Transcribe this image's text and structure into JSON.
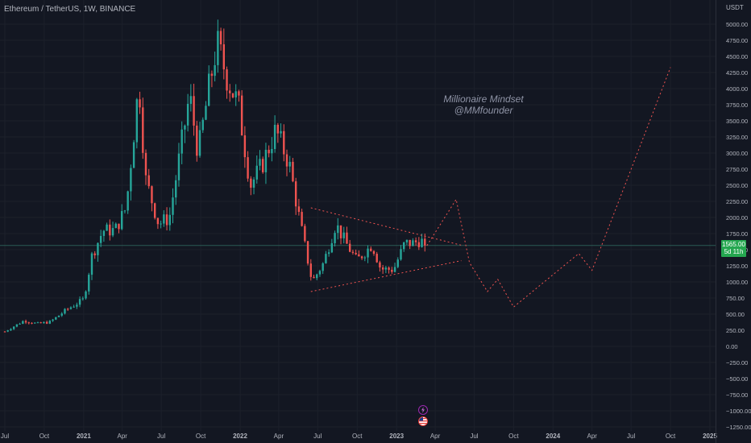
{
  "header": {
    "symbol": "Ethereum / TetherUS",
    "interval": "1W",
    "exchange": "BINANCE",
    "title_text": "Ethereum / TetherUS, 1W, BINANCE"
  },
  "watermark": {
    "line1": "Millionaire Mindset",
    "line2": "@MMfounder"
  },
  "price_badge": {
    "price": "1565.00",
    "countdown": "5d 11h"
  },
  "events": [
    {
      "icon": "lightning-icon",
      "color": "#9c27b0"
    },
    {
      "icon": "us-flag-icon",
      "color": "#e53935"
    }
  ],
  "colors": {
    "background": "#131722",
    "up": "#26a69a",
    "down": "#ef5350",
    "forecast": "#ef5350",
    "badge": "#25a750",
    "text": "#b2b5be",
    "grid": "#1c202b"
  },
  "chart_data": {
    "type": "candlestick",
    "unit": "USDT",
    "ylim": [
      -1250,
      5250
    ],
    "y_ticks": [
      "5000.00",
      "4750.00",
      "4500.00",
      "4250.00",
      "4000.00",
      "3750.00",
      "3500.00",
      "3250.00",
      "3000.00",
      "2750.00",
      "2500.00",
      "2250.00",
      "2000.00",
      "1750.00",
      "1500.00",
      "1250.00",
      "1000.00",
      "750.00",
      "500.00",
      "250.00",
      "0.00",
      "−250.00",
      "−500.00",
      "−750.00",
      "−1000.00",
      "−1250.00"
    ],
    "x_ticks": [
      "Jul",
      "Oct",
      "2021",
      "Apr",
      "Jul",
      "Oct",
      "2022",
      "Apr",
      "Jul",
      "Oct",
      "2023",
      "Apr",
      "Jul",
      "Oct",
      "2024",
      "Apr",
      "Jul",
      "Oct",
      "2025"
    ],
    "x_tick_dates": [
      "2020-07-01",
      "2020-10-01",
      "2021-01-01",
      "2021-04-01",
      "2021-07-01",
      "2021-10-01",
      "2022-01-01",
      "2022-04-01",
      "2022-07-01",
      "2022-10-01",
      "2023-01-01",
      "2023-04-01",
      "2023-07-01",
      "2023-10-01",
      "2024-01-01",
      "2024-04-01",
      "2024-07-01",
      "2024-10-01",
      "2025-01-01"
    ],
    "price_close_path": [
      [
        "2020-07-01",
        230
      ],
      [
        "2020-08-15",
        400
      ],
      [
        "2020-09-15",
        350
      ],
      [
        "2020-10-15",
        380
      ],
      [
        "2020-11-20",
        560
      ],
      [
        "2021-01-01",
        730
      ],
      [
        "2021-01-20",
        1400
      ],
      [
        "2021-02-15",
        1800
      ],
      [
        "2021-03-15",
        1800
      ],
      [
        "2021-04-10",
        2150
      ],
      [
        "2021-05-10",
        4100
      ],
      [
        "2021-05-25",
        2600
      ],
      [
        "2021-06-25",
        1900
      ],
      [
        "2021-07-20",
        2000
      ],
      [
        "2021-08-20",
        3250
      ],
      [
        "2021-09-05",
        3900
      ],
      [
        "2021-09-25",
        3000
      ],
      [
        "2021-10-20",
        4000
      ],
      [
        "2021-11-08",
        4700
      ],
      [
        "2021-12-05",
        4100
      ],
      [
        "2021-12-28",
        3750
      ],
      [
        "2022-01-25",
        2500
      ],
      [
        "2022-02-20",
        2800
      ],
      [
        "2022-03-25",
        3350
      ],
      [
        "2022-04-25",
        2850
      ],
      [
        "2022-05-20",
        1950
      ],
      [
        "2022-06-18",
        1000
      ],
      [
        "2022-07-15",
        1300
      ],
      [
        "2022-08-12",
        1900
      ],
      [
        "2022-09-05",
        1600
      ],
      [
        "2022-09-30",
        1330
      ],
      [
        "2022-11-05",
        1580
      ],
      [
        "2022-11-25",
        1200
      ],
      [
        "2022-12-25",
        1190
      ],
      [
        "2023-01-20",
        1600
      ],
      [
        "2023-02-10",
        1600
      ],
      [
        "2023-02-25",
        1650
      ],
      [
        "2023-03-13",
        1565
      ]
    ],
    "forecast_path": [
      [
        "2023-03-13",
        1565
      ],
      [
        "2023-05-20",
        2280
      ],
      [
        "2023-06-20",
        1300
      ],
      [
        "2023-08-01",
        850
      ],
      [
        "2023-08-25",
        1040
      ],
      [
        "2023-10-01",
        610
      ],
      [
        "2024-03-01",
        1440
      ],
      [
        "2024-04-01",
        1180
      ],
      [
        "2024-10-01",
        4330
      ]
    ],
    "triangle_upper": [
      [
        "2022-06-15",
        2150
      ],
      [
        "2023-06-01",
        1570
      ]
    ],
    "triangle_lower": [
      [
        "2022-06-15",
        850
      ],
      [
        "2023-06-01",
        1330
      ]
    ],
    "last_price": 1565.0
  }
}
